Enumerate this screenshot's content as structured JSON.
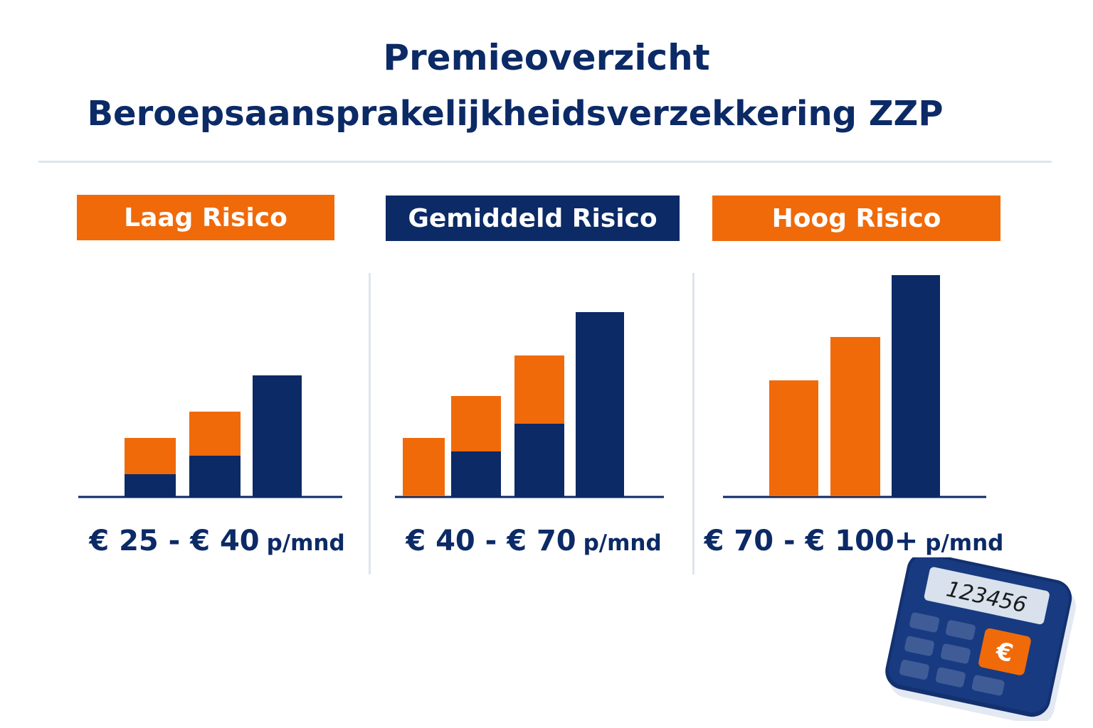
{
  "title": {
    "line1": "Premieoverzicht",
    "line2": "Beroepsaansprakelijkheidsverzekkering ZZP"
  },
  "colors": {
    "navy": "#0b2a66",
    "orange": "#f06a0a",
    "background": "#ffffff"
  },
  "chart_data": [
    {
      "type": "bar",
      "stacked": true,
      "title": "Laag Risico",
      "header_color": "orange",
      "price": {
        "amount": "€ 25 - € 40",
        "unit": "p/mnd"
      },
      "bars": [
        {
          "segments": [
            {
              "color": "navy",
              "value": 31
            },
            {
              "color": "orange",
              "value": 51
            }
          ]
        },
        {
          "segments": [
            {
              "color": "navy",
              "value": 57
            },
            {
              "color": "orange",
              "value": 62
            }
          ]
        },
        {
          "segments": [
            {
              "color": "navy",
              "value": 170
            }
          ]
        }
      ]
    },
    {
      "type": "bar",
      "stacked": true,
      "title": "Gemiddeld Risico",
      "header_color": "navy",
      "price": {
        "amount": "€ 40 - € 70",
        "unit": "p/mnd"
      },
      "bars": [
        {
          "segments": [
            {
              "color": "orange",
              "value": 82
            }
          ]
        },
        {
          "segments": [
            {
              "color": "navy",
              "value": 63
            },
            {
              "color": "orange",
              "value": 78
            }
          ]
        },
        {
          "segments": [
            {
              "color": "navy",
              "value": 102
            },
            {
              "color": "orange",
              "value": 96
            }
          ]
        },
        {
          "segments": [
            {
              "color": "navy",
              "value": 259
            }
          ]
        }
      ]
    },
    {
      "type": "bar",
      "stacked": true,
      "title": "Hoog Risico",
      "header_color": "orange",
      "price": {
        "amount": "€ 70 - € 100+",
        "unit": "p/mnd"
      },
      "bars": [
        {
          "segments": [
            {
              "color": "orange",
              "value": 163
            }
          ]
        },
        {
          "segments": [
            {
              "color": "orange",
              "value": 224
            }
          ]
        },
        {
          "segments": [
            {
              "color": "navy",
              "value": 311
            }
          ]
        }
      ]
    }
  ],
  "calculator": {
    "display": "123456",
    "key_symbol": "€",
    "icon": "calculator-icon"
  }
}
